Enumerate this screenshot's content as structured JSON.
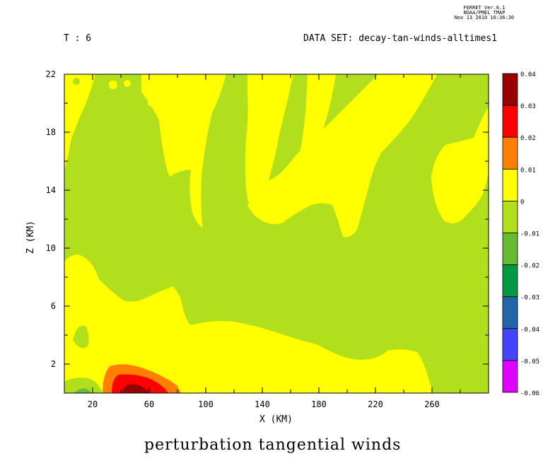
{
  "header": {
    "ferret_version": "FERRET  Ver.6.1",
    "ferret_org": "NOAA/PMEL TMAP",
    "ferret_date": "Nov 13 2010 16:36:30",
    "time_label": "T : 6",
    "dataset_label": "DATA SET: decay-tan-winds-alltimes1"
  },
  "chart_data": {
    "type": "heatmap",
    "subtype": "filled-contour",
    "title": "perturbation tangential winds",
    "xlabel": "X (KM)",
    "ylabel": "Z (KM)",
    "xlim": [
      0,
      300
    ],
    "ylim": [
      0,
      22
    ],
    "x_ticks": [
      20,
      60,
      100,
      140,
      180,
      220,
      260
    ],
    "y_ticks": [
      2,
      6,
      10,
      14,
      18,
      22
    ],
    "colorbar": {
      "levels": [
        0.04,
        0.03,
        0.02,
        0.01,
        0,
        -0.01,
        -0.02,
        -0.03,
        -0.04,
        -0.05,
        -0.06
      ],
      "bands": [
        {
          "range": [
            0.03,
            0.04
          ],
          "color": "#990000"
        },
        {
          "range": [
            0.02,
            0.03
          ],
          "color": "#ff0000"
        },
        {
          "range": [
            0.01,
            0.02
          ],
          "color": "#ff8000"
        },
        {
          "range": [
            0,
            0.01
          ],
          "color": "#ffff00"
        },
        {
          "range": [
            -0.01,
            0
          ],
          "color": "#b2df1b"
        },
        {
          "range": [
            -0.02,
            -0.01
          ],
          "color": "#66bb33"
        },
        {
          "range": [
            -0.03,
            -0.02
          ],
          "color": "#009944"
        },
        {
          "range": [
            -0.04,
            -0.03
          ],
          "color": "#2266aa"
        },
        {
          "range": [
            -0.05,
            -0.04
          ],
          "color": "#4444ff"
        },
        {
          "range": [
            -0.06,
            -0.05
          ],
          "color": "#dd00ff"
        }
      ]
    },
    "regions": [
      {
        "name": "low-level-positive",
        "range": [
          0,
          0.01
        ],
        "approx_extent": "X 0–265 km, Z 0–4.5 km"
      },
      {
        "name": "upper-positive-streaks",
        "range": [
          0,
          0.01
        ],
        "approx_extent": "X 60–250 km, Z 10–22 km"
      },
      {
        "name": "right-edge-positive",
        "range": [
          0,
          0.01
        ],
        "approx_extent": "X 255–300 km, Z 8–17 km"
      },
      {
        "name": "surface-maximum",
        "range": [
          0.03,
          0.04
        ],
        "approx_extent": "X 40–60 km, Z 0–0.5 km"
      }
    ]
  }
}
